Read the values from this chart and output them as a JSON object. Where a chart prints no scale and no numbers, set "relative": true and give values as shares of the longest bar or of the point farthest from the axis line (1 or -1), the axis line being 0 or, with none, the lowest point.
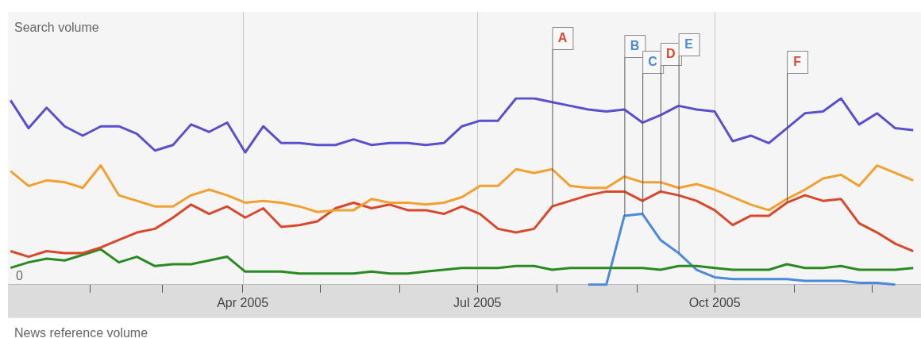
{
  "chart_data": {
    "type": "line",
    "relative": true,
    "grid": "x",
    "x": [
      "2005-01-01",
      "2005-01-08",
      "2005-01-15",
      "2005-01-22",
      "2005-01-29",
      "2005-02-05",
      "2005-02-12",
      "2005-02-19",
      "2005-02-26",
      "2005-03-05",
      "2005-03-12",
      "2005-03-19",
      "2005-03-26",
      "2005-04-02",
      "2005-04-09",
      "2005-04-16",
      "2005-04-23",
      "2005-04-30",
      "2005-05-07",
      "2005-05-14",
      "2005-05-21",
      "2005-05-28",
      "2005-06-04",
      "2005-06-11",
      "2005-06-18",
      "2005-06-25",
      "2005-07-02",
      "2005-07-09",
      "2005-07-16",
      "2005-07-23",
      "2005-07-30",
      "2005-08-06",
      "2005-08-13",
      "2005-08-20",
      "2005-08-27",
      "2005-09-03",
      "2005-09-10",
      "2005-09-17",
      "2005-09-24",
      "2005-10-01",
      "2005-10-08",
      "2005-10-15",
      "2005-10-22",
      "2005-10-29",
      "2005-11-05",
      "2005-11-12",
      "2005-11-19",
      "2005-11-26",
      "2005-12-03",
      "2005-12-10",
      "2005-12-17"
    ],
    "xlim": [
      "2004-12-31",
      "2005-12-20"
    ],
    "xticks": [
      {
        "value": "2005-02-01",
        "label": null
      },
      {
        "value": "2005-03-01",
        "label": null
      },
      {
        "value": "2005-04-01",
        "label": "Apr 2005"
      },
      {
        "value": "2005-05-01",
        "label": null
      },
      {
        "value": "2005-06-01",
        "label": null
      },
      {
        "value": "2005-07-01",
        "label": "Jul 2005"
      },
      {
        "value": "2005-08-01",
        "label": null
      },
      {
        "value": "2005-09-01",
        "label": null
      },
      {
        "value": "2005-10-01",
        "label": "Oct 2005"
      },
      {
        "value": "2005-11-01",
        "label": null
      },
      {
        "value": "2005-12-01",
        "label": null
      }
    ],
    "series": [
      {
        "color": "#5a4fcf",
        "values": [
          0.99,
          0.84,
          0.95,
          0.85,
          0.8,
          0.85,
          0.85,
          0.81,
          0.72,
          0.75,
          0.86,
          0.82,
          0.87,
          0.71,
          0.85,
          0.76,
          0.76,
          0.75,
          0.75,
          0.78,
          0.75,
          0.76,
          0.76,
          0.75,
          0.76,
          0.85,
          0.88,
          0.88,
          1.0,
          1.0,
          0.98,
          0.96,
          0.94,
          0.93,
          0.94,
          0.87,
          0.91,
          0.96,
          0.94,
          0.93,
          0.77,
          0.8,
          0.76,
          0.84,
          0.92,
          0.93,
          1.0,
          0.86,
          0.92,
          0.84,
          0.83
        ]
      },
      {
        "color": "#f2a130",
        "values": [
          0.61,
          0.53,
          0.56,
          0.55,
          0.52,
          0.64,
          0.48,
          0.45,
          0.42,
          0.42,
          0.48,
          0.51,
          0.48,
          0.44,
          0.45,
          0.44,
          0.42,
          0.39,
          0.4,
          0.4,
          0.46,
          0.44,
          0.44,
          0.43,
          0.44,
          0.47,
          0.53,
          0.53,
          0.62,
          0.6,
          0.62,
          0.53,
          0.52,
          0.52,
          0.58,
          0.55,
          0.55,
          0.52,
          0.54,
          0.51,
          0.47,
          0.43,
          0.4,
          0.46,
          0.51,
          0.57,
          0.59,
          0.53,
          0.64,
          0.6,
          0.56
        ]
      },
      {
        "color": "#d9482b",
        "values": [
          0.18,
          0.15,
          0.18,
          0.17,
          0.17,
          0.2,
          0.24,
          0.28,
          0.3,
          0.36,
          0.43,
          0.38,
          0.42,
          0.36,
          0.41,
          0.31,
          0.32,
          0.34,
          0.41,
          0.44,
          0.41,
          0.43,
          0.4,
          0.4,
          0.38,
          0.42,
          0.38,
          0.3,
          0.28,
          0.3,
          0.42,
          0.45,
          0.48,
          0.5,
          0.5,
          0.45,
          0.5,
          0.48,
          0.45,
          0.4,
          0.32,
          0.37,
          0.37,
          0.44,
          0.48,
          0.45,
          0.46,
          0.33,
          0.28,
          0.22,
          0.18
        ]
      },
      {
        "color": "#2a8a22",
        "values": [
          0.09,
          0.12,
          0.14,
          0.13,
          0.16,
          0.19,
          0.12,
          0.15,
          0.1,
          0.11,
          0.11,
          0.13,
          0.15,
          0.07,
          0.07,
          0.07,
          0.06,
          0.06,
          0.06,
          0.06,
          0.07,
          0.06,
          0.06,
          0.07,
          0.08,
          0.09,
          0.09,
          0.09,
          0.1,
          0.1,
          0.08,
          0.09,
          0.09,
          0.09,
          0.09,
          0.09,
          0.08,
          0.1,
          0.1,
          0.09,
          0.08,
          0.08,
          0.08,
          0.11,
          0.09,
          0.09,
          0.1,
          0.08,
          0.08,
          0.08,
          0.09
        ]
      },
      {
        "color": "#4a89dc",
        "values": [
          null,
          null,
          null,
          null,
          null,
          null,
          null,
          null,
          null,
          null,
          null,
          null,
          null,
          null,
          null,
          null,
          null,
          null,
          null,
          null,
          null,
          null,
          null,
          null,
          null,
          null,
          null,
          null,
          null,
          null,
          null,
          null,
          0.0,
          0.0,
          0.37,
          0.38,
          0.24,
          0.17,
          0.08,
          0.04,
          0.03,
          0.03,
          0.03,
          0.03,
          0.02,
          0.02,
          0.02,
          0.01,
          0.01,
          0.0,
          null
        ]
      }
    ],
    "annotations": [
      "Search volume",
      {
        "text": "A",
        "x": "2005-07-30",
        "y": 0.42
      },
      {
        "text": "B",
        "x": "2005-08-27",
        "y": 0.37
      },
      {
        "text": "C",
        "x": "2005-09-03",
        "y": 0.38
      },
      {
        "text": "D",
        "x": "2005-09-10",
        "y": 0.5
      },
      {
        "text": "E",
        "x": "2005-09-17",
        "y": 0.17
      },
      {
        "text": "F",
        "x": "2005-10-29",
        "y": 0.44
      },
      "0",
      "News reference volume"
    ]
  }
}
